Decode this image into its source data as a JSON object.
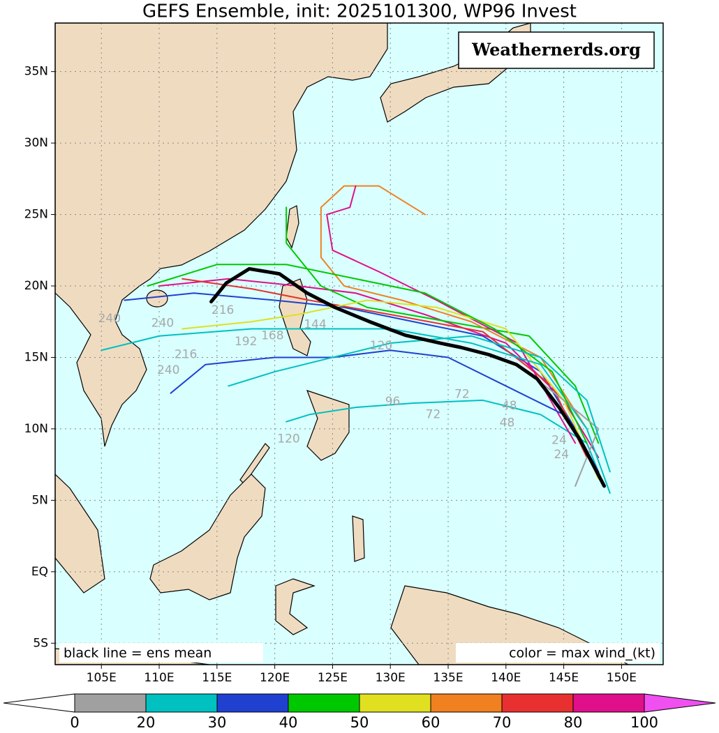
{
  "chart_data": {
    "type": "track_map",
    "title": "GEFS Ensemble, init: 2025101300, WP96 Invest",
    "watermark": "Weathernerds.org",
    "legend_left": "black line = ens mean",
    "legend_right": "color = max wind_(kt)",
    "xlim": [
      101,
      153.6
    ],
    "ylim": [
      -6.5,
      38.4
    ],
    "xticks": [
      {
        "value": 105,
        "label": "105E"
      },
      {
        "value": 110,
        "label": "110E"
      },
      {
        "value": 115,
        "label": "115E"
      },
      {
        "value": 120,
        "label": "120E"
      },
      {
        "value": 125,
        "label": "125E"
      },
      {
        "value": 130,
        "label": "130E"
      },
      {
        "value": 135,
        "label": "135E"
      },
      {
        "value": 140,
        "label": "140E"
      },
      {
        "value": 145,
        "label": "145E"
      },
      {
        "value": 150,
        "label": "150E"
      }
    ],
    "yticks": [
      {
        "value": -5,
        "label": "5S"
      },
      {
        "value": 0,
        "label": "EQ"
      },
      {
        "value": 5,
        "label": "5N"
      },
      {
        "value": 10,
        "label": "10N"
      },
      {
        "value": 15,
        "label": "15N"
      },
      {
        "value": 20,
        "label": "20N"
      },
      {
        "value": 25,
        "label": "25N"
      },
      {
        "value": 30,
        "label": "30N"
      },
      {
        "value": 35,
        "label": "35N"
      }
    ],
    "grid": true,
    "mean_track": {
      "color": "#000000",
      "lon": [
        114.5,
        115.8,
        117.8,
        120.4,
        122.8,
        125.2,
        128.2,
        131.3,
        134.3,
        136.1,
        138.5,
        140.9,
        142.7,
        144.6,
        146.4,
        148.5
      ],
      "lat": [
        18.9,
        20.2,
        21.2,
        20.85,
        19.5,
        18.5,
        17.5,
        16.55,
        16.0,
        15.7,
        15.2,
        14.5,
        13.5,
        11.5,
        9.25,
        6.0
      ]
    },
    "tracks": [
      {
        "color": "#00c0c0",
        "lon": [
          148.5,
          147,
          143,
          138,
          132,
          127,
          123,
          121
        ],
        "lat": [
          6,
          9,
          11,
          12,
          11.8,
          11.5,
          11,
          10.5
        ]
      },
      {
        "color": "#2040d0",
        "lon": [
          148,
          146,
          143,
          138,
          132,
          126,
          120,
          113,
          107
        ],
        "lat": [
          7,
          10,
          14,
          16.5,
          17.5,
          18.5,
          19,
          19.5,
          19
        ]
      },
      {
        "color": "#e0108a",
        "lon": [
          148,
          145,
          140,
          133,
          127,
          122,
          116,
          110
        ],
        "lat": [
          8,
          12,
          16,
          18,
          19.5,
          20,
          20.5,
          20
        ]
      },
      {
        "color": "#e83030",
        "lon": [
          147,
          144,
          138,
          130,
          123,
          118,
          112
        ],
        "lat": [
          8,
          13,
          16.8,
          18,
          19,
          19.8,
          20.5
        ]
      },
      {
        "color": "#00c800",
        "lon": [
          148,
          146,
          142,
          135,
          128,
          124,
          121,
          121
        ],
        "lat": [
          9,
          13,
          16.5,
          17.5,
          18.5,
          20,
          23,
          25.5
        ]
      },
      {
        "color": "#f08020",
        "lon": [
          147,
          143,
          137,
          131,
          126,
          124,
          124,
          126,
          129,
          133
        ],
        "lat": [
          10,
          15,
          17.5,
          19,
          20,
          22,
          25.5,
          27,
          27,
          25
        ]
      },
      {
        "color": "#e0108a",
        "lon": [
          146,
          141,
          134,
          129,
          125,
          124.5,
          126.5,
          127
        ],
        "lat": [
          9,
          16,
          19,
          21,
          22.5,
          25,
          25.5,
          27
        ]
      },
      {
        "color": "#e0e020",
        "lon": [
          148,
          145,
          140,
          134,
          128,
          122,
          118,
          112
        ],
        "lat": [
          6.5,
          12,
          17,
          18.5,
          19,
          18,
          17.5,
          17
        ]
      },
      {
        "color": "#00c0c0",
        "lon": [
          149,
          147,
          143,
          137,
          130,
          124,
          118,
          110,
          105
        ],
        "lat": [
          5.5,
          10,
          14.5,
          16,
          17,
          17,
          17,
          16.5,
          15.5
        ]
      },
      {
        "color": "#a0a0a0",
        "lon": [
          146,
          147,
          148,
          145,
          141
        ],
        "lat": [
          6,
          8,
          10,
          12,
          14.5
        ]
      },
      {
        "color": "#2040d0",
        "lon": [
          148,
          145,
          140,
          135,
          130,
          125,
          120,
          114,
          111
        ],
        "lat": [
          7,
          11,
          13,
          15,
          15.5,
          15,
          15,
          14.5,
          12.5
        ]
      },
      {
        "color": "#00c800",
        "lon": [
          147,
          144,
          139,
          133,
          127,
          121,
          115,
          109
        ],
        "lat": [
          9,
          14,
          17,
          19.5,
          20.5,
          21.5,
          21.5,
          20
        ]
      },
      {
        "color": "#00c0c0",
        "lon": [
          149,
          147,
          143,
          137,
          130,
          125,
          120,
          116
        ],
        "lat": [
          7,
          12,
          15,
          16.5,
          16,
          15,
          14,
          13
        ]
      }
    ],
    "annotations": [
      {
        "text": "240",
        "lon": 110.8,
        "lat": 14.1
      },
      {
        "text": "240",
        "lon": 105.7,
        "lat": 17.7
      },
      {
        "text": "240",
        "lon": 110.3,
        "lat": 17.4
      },
      {
        "text": "216",
        "lon": 112.3,
        "lat": 15.2
      },
      {
        "text": "216",
        "lon": 115.5,
        "lat": 18.3
      },
      {
        "text": "192",
        "lon": 117.5,
        "lat": 16.1
      },
      {
        "text": "168",
        "lon": 119.8,
        "lat": 16.5
      },
      {
        "text": "144",
        "lon": 123.5,
        "lat": 17.3
      },
      {
        "text": "120",
        "lon": 129.2,
        "lat": 15.8
      },
      {
        "text": "120",
        "lon": 121.2,
        "lat": 9.3
      },
      {
        "text": "96",
        "lon": 130.2,
        "lat": 11.9
      },
      {
        "text": "72",
        "lon": 133.7,
        "lat": 11.0
      },
      {
        "text": "72",
        "lon": 136.2,
        "lat": 12.4
      },
      {
        "text": "48",
        "lon": 140.1,
        "lat": 10.4
      },
      {
        "text": "48",
        "lon": 140.3,
        "lat": 11.6
      },
      {
        "text": "24",
        "lon": 144.6,
        "lat": 9.2
      },
      {
        "text": "24",
        "lon": 144.8,
        "lat": 8.2
      }
    ],
    "colorbar": {
      "bounds": [
        0,
        20,
        30,
        40,
        50,
        60,
        70,
        80,
        100
      ],
      "colors": [
        "#a0a0a0",
        "#00c0c0",
        "#2040d0",
        "#00c800",
        "#e0e020",
        "#f08020",
        "#e83030",
        "#e0108a"
      ],
      "under_color": "#ffffff",
      "over_color": "#f050f0"
    }
  }
}
